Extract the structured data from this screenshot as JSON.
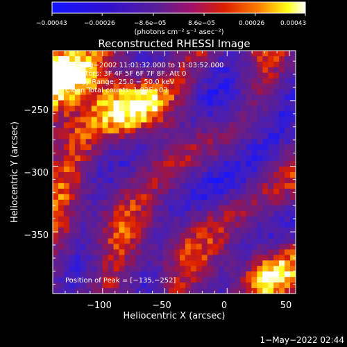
{
  "colorbar": {
    "tick_labels": [
      "−0.00043",
      "−0.00026",
      "−8.6e−05",
      "8.6e−05",
      "0.00026",
      "0.00043"
    ],
    "tick_values": [
      -0.00043,
      -0.00026,
      -8.6e-05,
      8.6e-05,
      0.00026,
      0.00043
    ],
    "range": [
      -0.00043,
      0.00043
    ],
    "unit_label": "(photons cm⁻² s⁻¹ asec⁻²)"
  },
  "plot": {
    "title": "Reconstructed RHESSI Image",
    "annotations": [
      "17−Aug−2002 11:01:32.000 to 11:03:52.000",
      "Detectors: 3F 4F 5F 6F 7F 8F, Att 0",
      "Energy Range: 25.0 − 50.0 keV",
      "Clean    Total counts: 1.93E+03"
    ],
    "peak_label": "Position of Peak = [−135,−252]"
  },
  "footer": {
    "timestamp": "1−May−2022 02:44"
  },
  "chart_data": {
    "type": "heatmap",
    "title": "Reconstructed RHESSI Image",
    "xlabel": "Heliocentric X (arcsec)",
    "ylabel": "Heliocentric Y (arcsec)",
    "xlim": [
      -140,
      55
    ],
    "ylim": [
      -397,
      -212
    ],
    "x_ticks": [
      -100,
      -50,
      0,
      50
    ],
    "x_tick_labels": [
      "−100",
      "−50",
      "0",
      "50"
    ],
    "y_ticks": [
      -250,
      -300,
      -350
    ],
    "y_tick_labels": [
      "−250",
      "−300",
      "−350"
    ],
    "peak_position": [
      -135,
      -252
    ],
    "colorscale": "rhessi-blue-purple-red-yellow-white",
    "colors": {
      "blue": "#1414ff",
      "purple": "#5a1e96",
      "red": "#dc1e00",
      "orange": "#ff8200",
      "yellow": "#ffff14",
      "white": "#ffffff"
    }
  }
}
